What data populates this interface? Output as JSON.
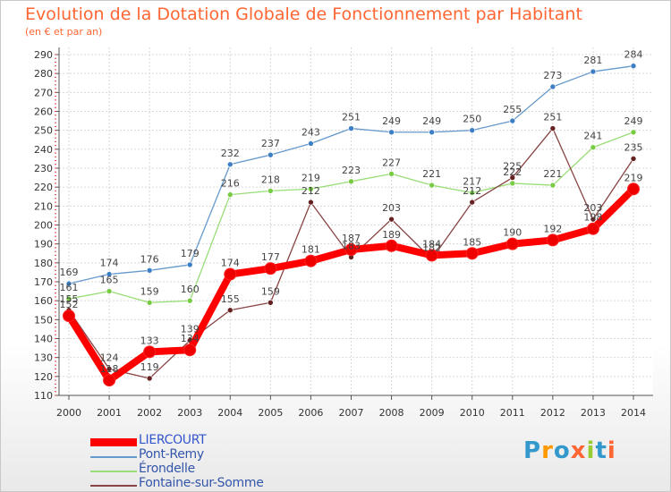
{
  "title": "Evolution de la Dotation Globale de Fonctionnement par Habitant",
  "subtitle": "(en € et par an)",
  "logo": {
    "letters": [
      "P",
      "r",
      "o",
      "x",
      "i",
      "t",
      "i"
    ],
    "colors": [
      "#3399cc",
      "#ff9900",
      "#3399cc",
      "#ff6633",
      "#99cc33",
      "#3399cc",
      "#ff6633"
    ]
  },
  "chart_data": {
    "type": "line",
    "title": "Evolution de la Dotation Globale de Fonctionnement par Habitant",
    "ylabel": "(en € et par an)",
    "xlabel": "",
    "ylim": [
      110,
      290
    ],
    "yticks": [
      110,
      120,
      130,
      140,
      150,
      160,
      170,
      180,
      190,
      200,
      210,
      220,
      230,
      240,
      250,
      260,
      270,
      280,
      290
    ],
    "categories": [
      "2000",
      "2001",
      "2002",
      "2003",
      "2004",
      "2005",
      "2006",
      "2007",
      "2008",
      "2009",
      "2010",
      "2011",
      "2012",
      "2013",
      "2014"
    ],
    "series": [
      {
        "name": "Pont-Remy",
        "color": "#6699cc",
        "marker": "#3d7fc4",
        "values": [
          169,
          174,
          176,
          179,
          232,
          237,
          243,
          251,
          249,
          249,
          250,
          255,
          273,
          281,
          284
        ],
        "labels": [
          "169",
          "174",
          "176",
          "179",
          "232",
          "237",
          "243",
          "251",
          "249",
          "249",
          "250",
          "255",
          "273",
          "281",
          "284"
        ]
      },
      {
        "name": "Érondelle",
        "color": "#99dd77",
        "marker": "#77cc44",
        "values": [
          161,
          165,
          159,
          160,
          216,
          218,
          219,
          223,
          227,
          221,
          217,
          222,
          221,
          241,
          249
        ],
        "labels": [
          "161",
          "165",
          "159",
          "160",
          "216",
          "218",
          "219",
          "223",
          "227",
          "221",
          "217",
          "222",
          "221",
          "241",
          "249"
        ]
      },
      {
        "name": "Fontaine-sur-Somme",
        "color": "#884444",
        "marker": "#662222",
        "values": [
          155,
          124,
          119,
          139,
          155,
          159,
          212,
          183,
          203,
          182,
          212,
          225,
          251,
          203,
          235
        ],
        "labels": [
          "155",
          "124",
          "119",
          "139",
          "155",
          "159",
          "212",
          "183",
          "203",
          "182",
          "212",
          "225",
          "251",
          "203",
          "235"
        ]
      },
      {
        "name": "LIERCOURT",
        "color": "#ff0000",
        "marker": "#ee0000",
        "values": [
          152,
          118,
          133,
          134,
          174,
          177,
          181,
          187,
          189,
          184,
          185,
          190,
          192,
          198,
          219
        ],
        "labels": [
          "152",
          "118",
          "133",
          "134",
          "174",
          "177",
          "181",
          "187",
          "189",
          "184",
          "185",
          "190",
          "192",
          "198",
          "219"
        ]
      }
    ],
    "legend": [
      "LIERCOURT",
      "Pont-Remy",
      "Érondelle",
      "Fontaine-sur-Somme"
    ],
    "grid": true,
    "legend_position": "bottom-left"
  }
}
